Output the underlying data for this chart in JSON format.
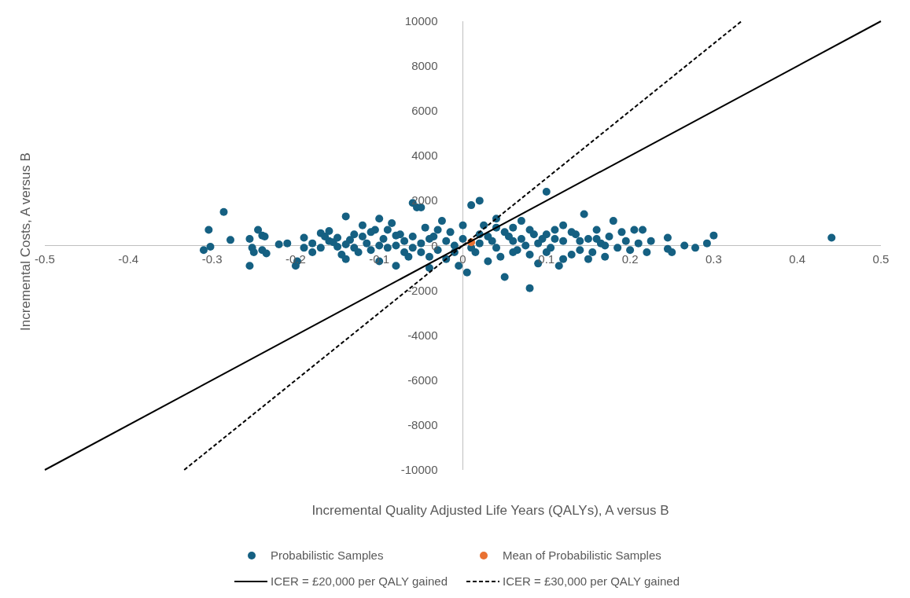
{
  "chart_data": {
    "type": "scatter",
    "xlabel": "Incremental Quality Adjusted Life Years (QALYs),  A versus B",
    "ylabel": "Incremental Costs, A versus B",
    "xlim": [
      -0.5,
      0.5
    ],
    "xticks": [
      -0.5,
      -0.4,
      -0.3,
      -0.2,
      -0.1,
      0,
      0.1,
      0.2,
      0.3,
      0.4,
      0.5
    ],
    "ylim": [
      -10000,
      10000
    ],
    "yticks": [
      -10000,
      -8000,
      -6000,
      -4000,
      -2000,
      0,
      2000,
      4000,
      6000,
      8000,
      10000
    ],
    "grid": false,
    "legend": "bottom",
    "series": [
      {
        "name": "Probabilistic Samples",
        "marker": "circle",
        "color": "#156082",
        "x": [
          -0.31,
          -0.302,
          -0.304,
          -0.286,
          -0.278,
          -0.255,
          -0.252,
          -0.25,
          -0.255,
          -0.245,
          -0.24,
          -0.237,
          -0.24,
          -0.235,
          -0.22,
          -0.21,
          -0.2,
          -0.198,
          -0.19,
          -0.18,
          -0.17,
          -0.165,
          -0.16,
          -0.155,
          -0.15,
          -0.145,
          -0.14,
          -0.14,
          -0.135,
          -0.13,
          -0.125,
          -0.12,
          -0.115,
          -0.11,
          -0.105,
          -0.1,
          -0.1,
          -0.095,
          -0.09,
          -0.085,
          -0.08,
          -0.075,
          -0.07,
          -0.065,
          -0.06,
          -0.055,
          -0.05,
          -0.05,
          -0.045,
          -0.04,
          -0.035,
          -0.03,
          -0.025,
          -0.02,
          -0.015,
          -0.01,
          -0.005,
          0.0,
          -0.18,
          -0.17,
          -0.16,
          -0.15,
          -0.13,
          -0.12,
          -0.11,
          -0.09,
          -0.08,
          -0.07,
          -0.06,
          -0.05,
          -0.04,
          -0.03,
          -0.02,
          -0.01,
          -0.19,
          -0.14,
          -0.1,
          -0.08,
          -0.06,
          -0.04,
          0.005,
          0.01,
          0.02,
          0.015,
          0.02,
          0.025,
          0.03,
          0.035,
          0.04,
          0.045,
          0.05,
          0.055,
          0.06,
          0.065,
          0.07,
          0.075,
          0.08,
          0.085,
          0.09,
          0.095,
          0.1,
          0.105,
          0.11,
          0.115,
          0.12,
          0.13,
          0.135,
          0.14,
          0.145,
          0.15,
          0.155,
          0.16,
          0.165,
          0.17,
          0.175,
          0.18,
          0.185,
          0.19,
          0.195,
          0.2,
          0.205,
          0.21,
          0.215,
          0.22,
          0.225,
          0.245,
          0.245,
          0.25,
          0.265,
          0.278,
          0.292,
          0.3,
          0.441,
          0.0,
          0.01,
          0.02,
          0.03,
          0.04,
          0.05,
          0.06,
          0.07,
          0.08,
          0.09,
          0.1,
          0.11,
          0.12,
          0.13,
          0.14,
          0.15,
          0.16,
          0.17,
          0.06,
          0.08,
          0.1,
          0.04,
          0.12
        ],
        "values": [
          -200,
          -50,
          700,
          1500,
          250,
          300,
          -100,
          -300,
          -900,
          700,
          450,
          400,
          -200,
          -350,
          50,
          100,
          -900,
          -700,
          350,
          100,
          550,
          400,
          650,
          150,
          -50,
          -400,
          -600,
          1300,
          250,
          500,
          -300,
          900,
          100,
          -200,
          700,
          -700,
          1200,
          300,
          -100,
          1000,
          -900,
          500,
          200,
          -500,
          1900,
          1700,
          1700,
          -300,
          800,
          -1000,
          400,
          -200,
          1100,
          -600,
          600,
          0,
          -900,
          900,
          -300,
          -100,
          200,
          350,
          -100,
          400,
          600,
          700,
          0,
          -300,
          400,
          100,
          300,
          700,
          200,
          -300,
          -100,
          50,
          0,
          450,
          -100,
          -500,
          -1200,
          1800,
          2000,
          -300,
          500,
          900,
          -700,
          200,
          1200,
          -500,
          -1400,
          400,
          800,
          -200,
          1100,
          0,
          -1900,
          500,
          -800,
          300,
          2400,
          -100,
          700,
          -900,
          200,
          -400,
          500,
          -200,
          1400,
          300,
          -300,
          700,
          100,
          -500,
          400,
          1100,
          -100,
          600,
          200,
          -200,
          700,
          100,
          700,
          -300,
          200,
          350,
          -150,
          -300,
          0,
          -100,
          100,
          450,
          350,
          300,
          -100,
          100,
          400,
          -100,
          600,
          -300,
          300,
          700,
          100,
          -300,
          300,
          -600,
          600,
          200,
          -600,
          300,
          0,
          200,
          -400,
          500,
          800,
          900
        ]
      },
      {
        "name": "Mean of Probabilistic Samples",
        "marker": "circle",
        "color": "#e97132",
        "x": [
          0.01
        ],
        "values": [
          150
        ]
      },
      {
        "name": "ICER = £20,000 per QALY gained",
        "type": "line",
        "line_style": "solid",
        "color": "#000000",
        "x": [
          -0.5,
          0.5
        ],
        "values": [
          -10000,
          10000
        ]
      },
      {
        "name": "ICER = £30,000 per QALY gained",
        "type": "line",
        "line_style": "dashed",
        "color": "#000000",
        "x": [
          -0.3333,
          0.3333
        ],
        "values": [
          -10000,
          10000
        ]
      }
    ]
  }
}
